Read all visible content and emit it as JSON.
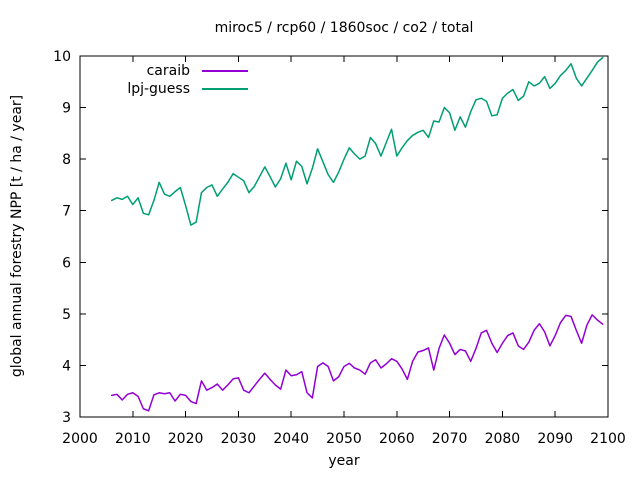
{
  "window": {
    "background": "#ffffff",
    "axis_color": "#000000",
    "text_color": "#000000"
  },
  "chart_data": {
    "type": "line",
    "title": "miroc5 / rcp60 / 1860soc / co2 / total",
    "xlabel": "year",
    "ylabel": "global annual forestry NPP [t / ha / year]",
    "xlim": [
      2000,
      2100
    ],
    "ylim": [
      3,
      10
    ],
    "xticks": [
      2000,
      2010,
      2020,
      2030,
      2040,
      2050,
      2060,
      2070,
      2080,
      2090,
      2100
    ],
    "yticks": [
      3,
      4,
      5,
      6,
      7,
      8,
      9,
      10
    ],
    "grid": false,
    "legend_position": "top-left-inside",
    "x_start": 2006,
    "x_end": 2099,
    "x_step": 1,
    "series": [
      {
        "name": "caraib",
        "color": "#9400d3",
        "values": [
          3.42,
          3.44,
          3.33,
          3.44,
          3.47,
          3.4,
          3.16,
          3.12,
          3.43,
          3.47,
          3.45,
          3.47,
          3.31,
          3.44,
          3.42,
          3.3,
          3.26,
          3.7,
          3.52,
          3.57,
          3.64,
          3.52,
          3.62,
          3.74,
          3.76,
          3.52,
          3.47,
          3.6,
          3.73,
          3.85,
          3.73,
          3.62,
          3.54,
          3.91,
          3.8,
          3.82,
          3.88,
          3.47,
          3.37,
          3.98,
          4.05,
          3.98,
          3.7,
          3.78,
          3.98,
          4.04,
          3.95,
          3.91,
          3.83,
          4.05,
          4.11,
          3.95,
          4.03,
          4.13,
          4.08,
          3.93,
          3.73,
          4.08,
          4.26,
          4.29,
          4.34,
          3.91,
          4.33,
          4.59,
          4.43,
          4.21,
          4.31,
          4.28,
          4.08,
          4.33,
          4.63,
          4.68,
          4.43,
          4.25,
          4.43,
          4.58,
          4.63,
          4.38,
          4.31,
          4.45,
          4.68,
          4.81,
          4.65,
          4.38,
          4.58,
          4.83,
          4.97,
          4.95,
          4.68,
          4.43,
          4.78,
          4.98,
          4.88,
          4.8
        ]
      },
      {
        "name": "lpj-guess",
        "color": "#009e73",
        "values": [
          7.2,
          7.25,
          7.22,
          7.28,
          7.12,
          7.25,
          6.95,
          6.92,
          7.2,
          7.55,
          7.32,
          7.28,
          7.37,
          7.45,
          7.1,
          6.72,
          6.78,
          7.35,
          7.45,
          7.5,
          7.28,
          7.42,
          7.55,
          7.72,
          7.65,
          7.58,
          7.35,
          7.47,
          7.66,
          7.85,
          7.66,
          7.46,
          7.62,
          7.92,
          7.6,
          7.96,
          7.86,
          7.52,
          7.82,
          8.2,
          7.95,
          7.7,
          7.55,
          7.75,
          8.0,
          8.22,
          8.1,
          8.0,
          8.06,
          8.42,
          8.3,
          8.06,
          8.32,
          8.58,
          8.06,
          8.22,
          8.36,
          8.46,
          8.52,
          8.56,
          8.42,
          8.74,
          8.72,
          9.0,
          8.9,
          8.56,
          8.82,
          8.62,
          8.92,
          9.15,
          9.18,
          9.12,
          8.84,
          8.86,
          9.18,
          9.28,
          9.35,
          9.14,
          9.22,
          9.5,
          9.42,
          9.47,
          9.6,
          9.37,
          9.47,
          9.62,
          9.72,
          9.85,
          9.57,
          9.42,
          9.57,
          9.72,
          9.88,
          9.97
        ]
      }
    ]
  }
}
